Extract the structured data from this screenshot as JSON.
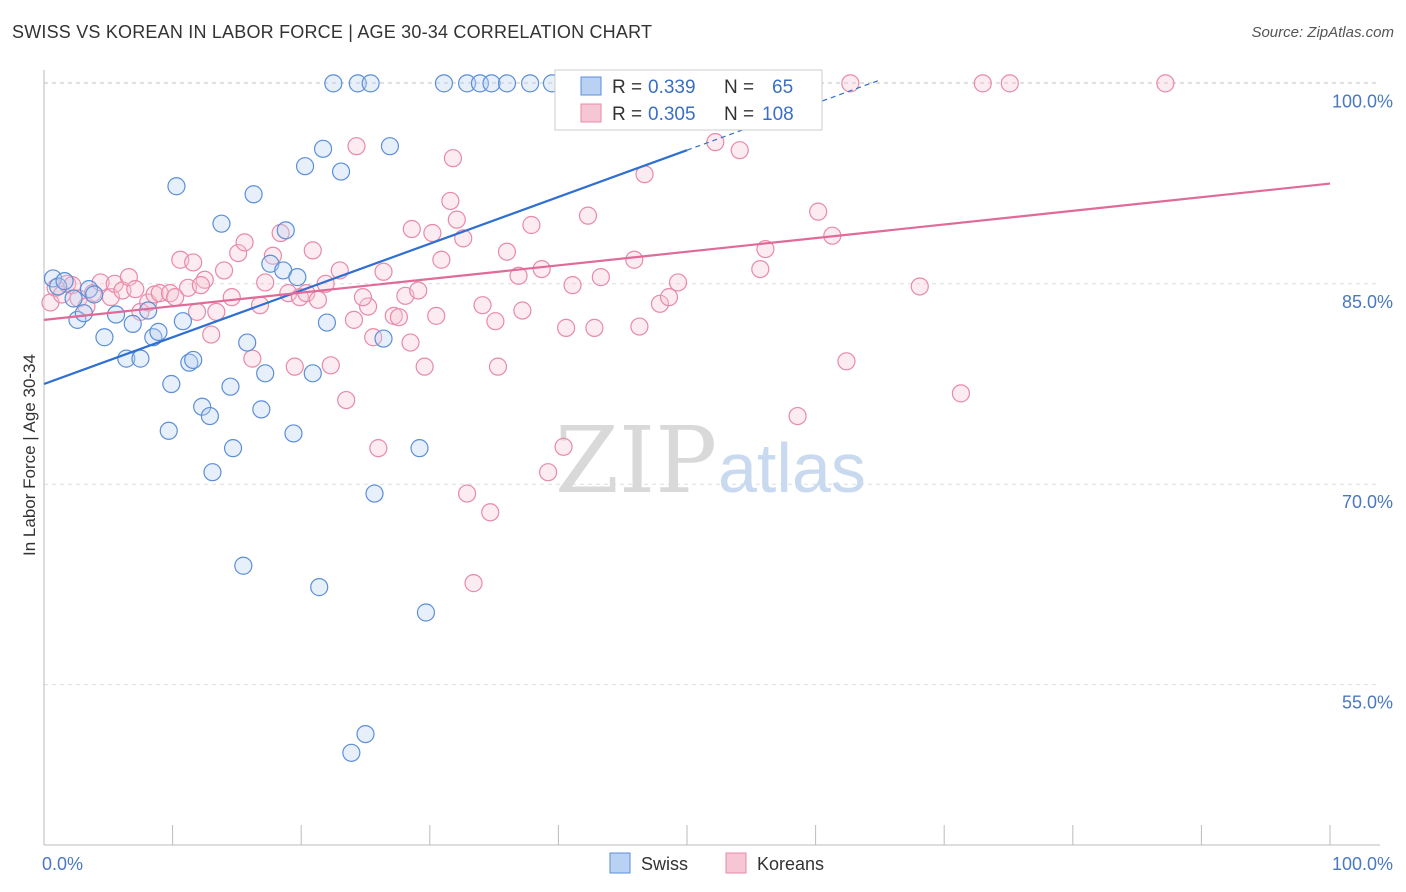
{
  "title": "SWISS VS KOREAN IN LABOR FORCE | AGE 30-34 CORRELATION CHART",
  "source": "Source: ZipAtlas.com",
  "watermark": {
    "zip": "ZIP",
    "atlas": "atlas"
  },
  "legend": {
    "r_label": "R =",
    "n_label": "N =",
    "swiss": {
      "r": "0.339",
      "n": "65"
    },
    "koreans": {
      "r": "0.305",
      "n": "108"
    }
  },
  "colors": {
    "swiss": "#5b8fd8",
    "koreans": "#e88aa8",
    "swiss_line": "#2f6fcf",
    "koreans_line": "#e06a98"
  },
  "chart_data": {
    "type": "scatter",
    "xlabel": "",
    "ylabel": "In Labor Force | Age 30-34",
    "xlim": [
      0,
      100
    ],
    "ylim": [
      43,
      101
    ],
    "x_tick_labels": [
      "0.0%",
      "100.0%"
    ],
    "y_ticks": [
      55,
      70,
      85,
      100
    ],
    "y_tick_labels": [
      "55.0%",
      "70.0%",
      "85.0%",
      "100.0%"
    ],
    "legend_placement": "bottom-center",
    "grid": true,
    "series": [
      {
        "name": "Swiss",
        "trend": {
          "x0": 0,
          "y0": 77.5,
          "x1": 50,
          "y1": 95.0,
          "dash_to_x": 65
        },
        "points": [
          [
            0.7,
            85.4
          ],
          [
            1.1,
            84.8
          ],
          [
            1.6,
            85.2
          ],
          [
            2.3,
            83.9
          ],
          [
            2.6,
            82.3
          ],
          [
            3.1,
            82.8
          ],
          [
            3.5,
            84.6
          ],
          [
            3.9,
            84.2
          ],
          [
            4.7,
            81.0
          ],
          [
            5.6,
            82.7
          ],
          [
            6.4,
            79.4
          ],
          [
            6.9,
            82.0
          ],
          [
            7.5,
            79.4
          ],
          [
            8.1,
            83.0
          ],
          [
            8.5,
            81.0
          ],
          [
            8.9,
            81.4
          ],
          [
            9.7,
            74.0
          ],
          [
            9.9,
            77.5
          ],
          [
            10.3,
            92.3
          ],
          [
            10.8,
            82.2
          ],
          [
            11.3,
            79.1
          ],
          [
            11.6,
            79.3
          ],
          [
            12.3,
            75.8
          ],
          [
            12.9,
            75.1
          ],
          [
            13.1,
            70.9
          ],
          [
            13.8,
            89.5
          ],
          [
            14.5,
            77.3
          ],
          [
            14.7,
            72.7
          ],
          [
            15.5,
            63.9
          ],
          [
            15.8,
            80.6
          ],
          [
            16.3,
            91.7
          ],
          [
            16.9,
            75.6
          ],
          [
            17.2,
            78.3
          ],
          [
            17.6,
            86.5
          ],
          [
            18.6,
            86.0
          ],
          [
            18.8,
            89.0
          ],
          [
            19.4,
            73.8
          ],
          [
            19.7,
            85.5
          ],
          [
            20.3,
            93.8
          ],
          [
            20.9,
            78.3
          ],
          [
            21.4,
            62.3
          ],
          [
            21.7,
            95.1
          ],
          [
            22.0,
            82.1
          ],
          [
            22.5,
            100.0
          ],
          [
            23.1,
            93.4
          ],
          [
            23.9,
            49.9
          ],
          [
            24.4,
            100.0
          ],
          [
            25.0,
            51.3
          ],
          [
            25.4,
            100.0
          ],
          [
            25.7,
            69.3
          ],
          [
            26.4,
            80.9
          ],
          [
            26.9,
            95.3
          ],
          [
            29.2,
            72.7
          ],
          [
            29.7,
            60.4
          ],
          [
            31.1,
            100.0
          ],
          [
            32.9,
            100.0
          ],
          [
            33.9,
            100.0
          ],
          [
            34.8,
            100.0
          ],
          [
            36.0,
            100.0
          ],
          [
            37.8,
            100.0
          ],
          [
            39.5,
            100.0
          ],
          [
            42.0,
            100.0
          ],
          [
            42.6,
            100.0
          ],
          [
            45.3,
            100.0
          ],
          [
            48.3,
            100.0
          ]
        ]
      },
      {
        "name": "Koreans",
        "trend": {
          "x0": 0,
          "y0": 82.3,
          "x1": 100,
          "y1": 92.5
        },
        "points": [
          [
            0.5,
            83.6
          ],
          [
            0.9,
            84.7
          ],
          [
            1.4,
            84.2
          ],
          [
            1.8,
            85.0
          ],
          [
            2.2,
            84.9
          ],
          [
            2.7,
            83.9
          ],
          [
            3.3,
            83.3
          ],
          [
            3.8,
            84.3
          ],
          [
            4.4,
            85.1
          ],
          [
            5.2,
            84.0
          ],
          [
            5.5,
            85.0
          ],
          [
            6.1,
            84.5
          ],
          [
            6.6,
            85.5
          ],
          [
            7.1,
            84.6
          ],
          [
            7.5,
            82.9
          ],
          [
            8.1,
            83.6
          ],
          [
            8.6,
            84.2
          ],
          [
            9.0,
            84.3
          ],
          [
            9.8,
            84.3
          ],
          [
            10.2,
            84.0
          ],
          [
            10.6,
            86.8
          ],
          [
            11.2,
            84.7
          ],
          [
            11.6,
            86.6
          ],
          [
            11.9,
            82.9
          ],
          [
            12.5,
            85.3
          ],
          [
            13.0,
            81.2
          ],
          [
            13.4,
            82.9
          ],
          [
            14.0,
            86.0
          ],
          [
            14.6,
            84.0
          ],
          [
            15.1,
            87.3
          ],
          [
            15.6,
            88.1
          ],
          [
            16.2,
            79.4
          ],
          [
            16.8,
            83.4
          ],
          [
            17.2,
            85.1
          ],
          [
            17.8,
            87.1
          ],
          [
            18.4,
            88.8
          ],
          [
            19.0,
            84.3
          ],
          [
            19.5,
            78.8
          ],
          [
            19.9,
            84.0
          ],
          [
            20.4,
            84.3
          ],
          [
            20.9,
            87.5
          ],
          [
            21.3,
            83.8
          ],
          [
            21.9,
            85.0
          ],
          [
            22.3,
            78.9
          ],
          [
            23.0,
            86.0
          ],
          [
            23.5,
            76.3
          ],
          [
            24.1,
            82.3
          ],
          [
            24.3,
            95.3
          ],
          [
            25.2,
            83.3
          ],
          [
            25.6,
            81.0
          ],
          [
            26.0,
            72.7
          ],
          [
            26.4,
            85.9
          ],
          [
            27.2,
            82.6
          ],
          [
            27.6,
            82.5
          ],
          [
            28.1,
            84.1
          ],
          [
            28.5,
            80.6
          ],
          [
            29.1,
            84.5
          ],
          [
            29.6,
            78.8
          ],
          [
            30.2,
            88.8
          ],
          [
            30.5,
            82.6
          ],
          [
            30.9,
            86.8
          ],
          [
            31.6,
            91.2
          ],
          [
            32.1,
            89.8
          ],
          [
            32.6,
            88.4
          ],
          [
            32.9,
            69.3
          ],
          [
            33.4,
            62.6
          ],
          [
            34.1,
            83.4
          ],
          [
            34.7,
            67.9
          ],
          [
            35.3,
            78.8
          ],
          [
            36.0,
            87.4
          ],
          [
            36.9,
            85.6
          ],
          [
            37.2,
            83.0
          ],
          [
            37.9,
            89.4
          ],
          [
            38.7,
            86.1
          ],
          [
            39.2,
            70.9
          ],
          [
            40.6,
            81.7
          ],
          [
            41.1,
            84.9
          ],
          [
            42.3,
            90.1
          ],
          [
            42.8,
            81.7
          ],
          [
            43.3,
            85.5
          ],
          [
            45.9,
            86.8
          ],
          [
            46.3,
            81.8
          ],
          [
            47.9,
            83.5
          ],
          [
            48.6,
            84.0
          ],
          [
            49.3,
            85.1
          ],
          [
            51.2,
            97.9
          ],
          [
            52.2,
            95.6
          ],
          [
            52.8,
            98.2
          ],
          [
            55.7,
            86.1
          ],
          [
            56.1,
            87.6
          ],
          [
            58.6,
            75.1
          ],
          [
            60.2,
            90.4
          ],
          [
            61.3,
            88.6
          ],
          [
            62.4,
            79.2
          ],
          [
            62.7,
            100.0
          ],
          [
            68.1,
            84.8
          ],
          [
            71.3,
            76.8
          ],
          [
            73.0,
            100.0
          ],
          [
            75.1,
            100.0
          ],
          [
            87.2,
            100.0
          ],
          [
            40.4,
            72.8
          ],
          [
            31.8,
            94.4
          ],
          [
            28.6,
            89.1
          ],
          [
            46.7,
            93.2
          ],
          [
            12.2,
            84.9
          ],
          [
            24.8,
            84.0
          ],
          [
            35.1,
            82.2
          ],
          [
            54.1,
            95.0
          ]
        ]
      }
    ]
  },
  "bottom_legend": {
    "swiss": "Swiss",
    "koreans": "Koreans"
  }
}
